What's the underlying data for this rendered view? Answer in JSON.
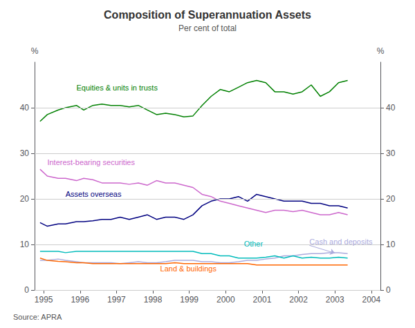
{
  "chart_data": {
    "type": "line",
    "title": "Composition of Superannuation Assets",
    "subtitle": "Per cent of total",
    "source": "Source: APRA",
    "ylabel": "%",
    "y2label": "%",
    "ylim": [
      0,
      50
    ],
    "yticks": [
      0,
      10,
      20,
      30,
      40
    ],
    "y2lim": [
      0,
      50
    ],
    "y2ticks": [
      0,
      10,
      20,
      30,
      40
    ],
    "xlim": [
      1994.75,
      2004.25
    ],
    "xticks": [
      1995,
      1996,
      1997,
      1998,
      1999,
      2000,
      2001,
      2002,
      2003,
      2004
    ],
    "grid": true,
    "x": [
      1994.9,
      1995.1,
      1995.4,
      1995.6,
      1995.9,
      1996.1,
      1996.35,
      1996.6,
      1996.85,
      1997.1,
      1997.35,
      1997.6,
      1997.85,
      1998.1,
      1998.35,
      1998.6,
      1998.85,
      1999.1,
      1999.35,
      1999.6,
      1999.85,
      2000.1,
      2000.35,
      2000.6,
      2000.85,
      2001.1,
      2001.35,
      2001.6,
      2001.85,
      2002.1,
      2002.35,
      2002.6,
      2002.85,
      2003.1,
      2003.35
    ],
    "series": [
      {
        "name": "Equities & units in trusts",
        "color": "#008000",
        "values": [
          37.0,
          38.5,
          39.5,
          40.0,
          40.5,
          39.5,
          40.5,
          40.8,
          40.5,
          40.5,
          40.2,
          40.5,
          39.5,
          38.5,
          38.8,
          38.5,
          38.0,
          38.2,
          40.5,
          42.5,
          44.0,
          43.5,
          44.5,
          45.5,
          46.0,
          45.5,
          43.5,
          43.5,
          43.0,
          43.5,
          45.0,
          42.5,
          43.5,
          45.5,
          46.0
        ],
        "annotation": {
          "x": 1995.9,
          "y": 43.5
        }
      },
      {
        "name": "Interest-bearing securities",
        "color": "#cc66cc",
        "values": [
          26.5,
          25.0,
          24.5,
          24.5,
          24.0,
          24.5,
          24.2,
          23.5,
          23.5,
          23.5,
          23.2,
          23.5,
          23.0,
          24.0,
          23.5,
          23.5,
          23.0,
          22.5,
          21.0,
          20.5,
          19.5,
          19.0,
          18.5,
          18.0,
          17.5,
          17.0,
          17.5,
          17.5,
          17.2,
          17.5,
          17.0,
          16.5,
          16.5,
          17.0,
          16.5
        ],
        "annotation": {
          "x": 1995.1,
          "y": 27.2
        }
      },
      {
        "name": "Assets overseas",
        "color": "#000080",
        "values": [
          14.8,
          14.0,
          14.5,
          14.5,
          15.0,
          15.0,
          15.2,
          15.5,
          15.5,
          16.0,
          15.5,
          16.0,
          16.5,
          15.5,
          16.0,
          16.0,
          15.5,
          16.5,
          18.5,
          19.5,
          20.0,
          20.0,
          20.5,
          19.5,
          21.0,
          20.5,
          20.0,
          19.5,
          19.5,
          19.5,
          19.0,
          19.0,
          18.5,
          18.5,
          18.0
        ],
        "annotation": {
          "x": 1995.6,
          "y": 20.2
        }
      },
      {
        "name": "Cash and deposits",
        "color": "#aaaadd",
        "values": [
          6.5,
          6.5,
          6.8,
          6.5,
          6.2,
          6.0,
          6.0,
          6.0,
          6.0,
          5.8,
          6.0,
          6.2,
          6.0,
          6.0,
          6.2,
          6.5,
          6.5,
          6.5,
          6.2,
          6.2,
          6.0,
          6.0,
          6.2,
          6.5,
          6.5,
          6.8,
          7.0,
          7.5,
          7.5,
          7.8,
          8.0,
          8.0,
          8.2,
          8.2,
          8.0
        ],
        "annotation": {
          "x": 2002.3,
          "y": 9.8,
          "arrow_to": [
            2003.0,
            8.1
          ]
        }
      },
      {
        "name": "Other",
        "color": "#00bbbb",
        "values": [
          8.5,
          8.5,
          8.5,
          8.2,
          8.5,
          8.5,
          8.5,
          8.5,
          8.5,
          8.5,
          8.5,
          8.5,
          8.5,
          8.5,
          8.5,
          8.5,
          8.5,
          8.5,
          8.0,
          8.0,
          7.5,
          7.5,
          7.0,
          7.0,
          7.0,
          7.2,
          7.5,
          7.0,
          7.5,
          7.0,
          7.2,
          7.0,
          7.0,
          7.2,
          7.0
        ],
        "annotation": {
          "x": 2000.5,
          "y": 9.3
        }
      },
      {
        "name": "Land & buildings",
        "color": "#ff6600",
        "values": [
          7.0,
          6.5,
          6.3,
          6.2,
          6.0,
          6.0,
          5.8,
          5.8,
          5.8,
          5.8,
          5.8,
          5.8,
          5.8,
          5.8,
          5.8,
          6.0,
          5.8,
          5.8,
          5.8,
          5.8,
          5.8,
          5.8,
          5.8,
          5.8,
          5.5,
          5.5,
          5.5,
          5.5,
          5.5,
          5.5,
          5.5,
          5.5,
          5.5,
          5.5,
          5.5
        ],
        "annotation": {
          "x": 1998.2,
          "y": 3.8
        }
      }
    ]
  }
}
